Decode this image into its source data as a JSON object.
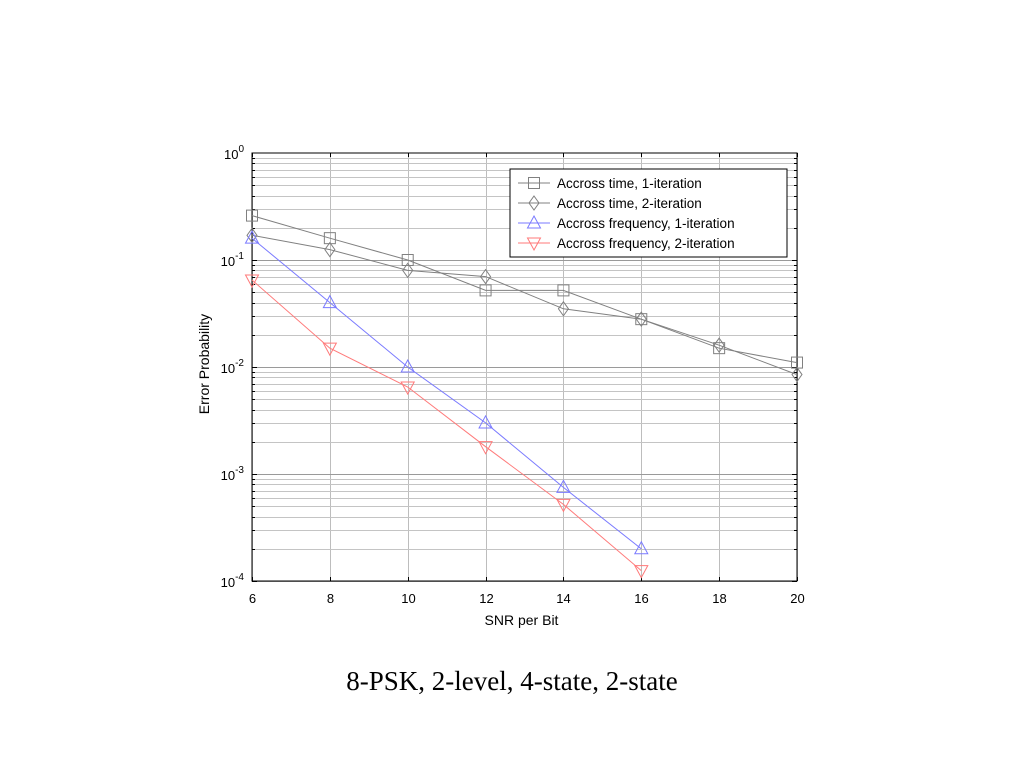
{
  "caption": "8-PSK, 2-level, 4-state, 2-state",
  "chart_data": {
    "type": "line",
    "xlabel": "SNR per Bit",
    "ylabel": "Error Probability",
    "xlim": [
      6,
      20
    ],
    "ylim": [
      0.0001,
      1
    ],
    "yscale": "log",
    "xticks": [
      6,
      8,
      10,
      12,
      14,
      16,
      18,
      20
    ],
    "xtick_labels": [
      "6",
      "8",
      "10",
      "12",
      "14",
      "16",
      "18",
      "20"
    ],
    "yticks": [
      {
        "value": 1,
        "base": "10",
        "exp": "0"
      },
      {
        "value": 0.1,
        "base": "10",
        "exp": "-1"
      },
      {
        "value": 0.01,
        "base": "10",
        "exp": "-2"
      },
      {
        "value": 0.001,
        "base": "10",
        "exp": "-3"
      },
      {
        "value": 0.0001,
        "base": "10",
        "exp": "-4"
      }
    ],
    "grid": true,
    "legend_position": "top-right",
    "series": [
      {
        "name": "Accross time, 1-iteration",
        "marker": "square",
        "color": "#808080",
        "x": [
          6,
          8,
          10,
          12,
          14,
          16,
          18,
          20
        ],
        "y": [
          0.26,
          0.16,
          0.1,
          0.052,
          0.052,
          0.028,
          0.015,
          0.011
        ]
      },
      {
        "name": "Accross time, 2-iteration",
        "marker": "diamond",
        "color": "#808080",
        "x": [
          6,
          8,
          10,
          12,
          14,
          16,
          18,
          20
        ],
        "y": [
          0.17,
          0.125,
          0.08,
          0.07,
          0.035,
          0.028,
          0.016,
          0.0085
        ]
      },
      {
        "name": "Accross frequency, 1-iteration",
        "marker": "triangle-up",
        "color": "#7a7aff",
        "x": [
          6,
          8,
          10,
          12,
          14,
          16
        ],
        "y": [
          0.16,
          0.04,
          0.01,
          0.003,
          0.00075,
          0.0002
        ]
      },
      {
        "name": "Accross frequency, 2-iteration",
        "marker": "triangle-down",
        "color": "#ff7a7a",
        "x": [
          6,
          8,
          10,
          12,
          14,
          16
        ],
        "y": [
          0.065,
          0.015,
          0.0065,
          0.0018,
          0.00052,
          0.000125
        ]
      }
    ]
  }
}
